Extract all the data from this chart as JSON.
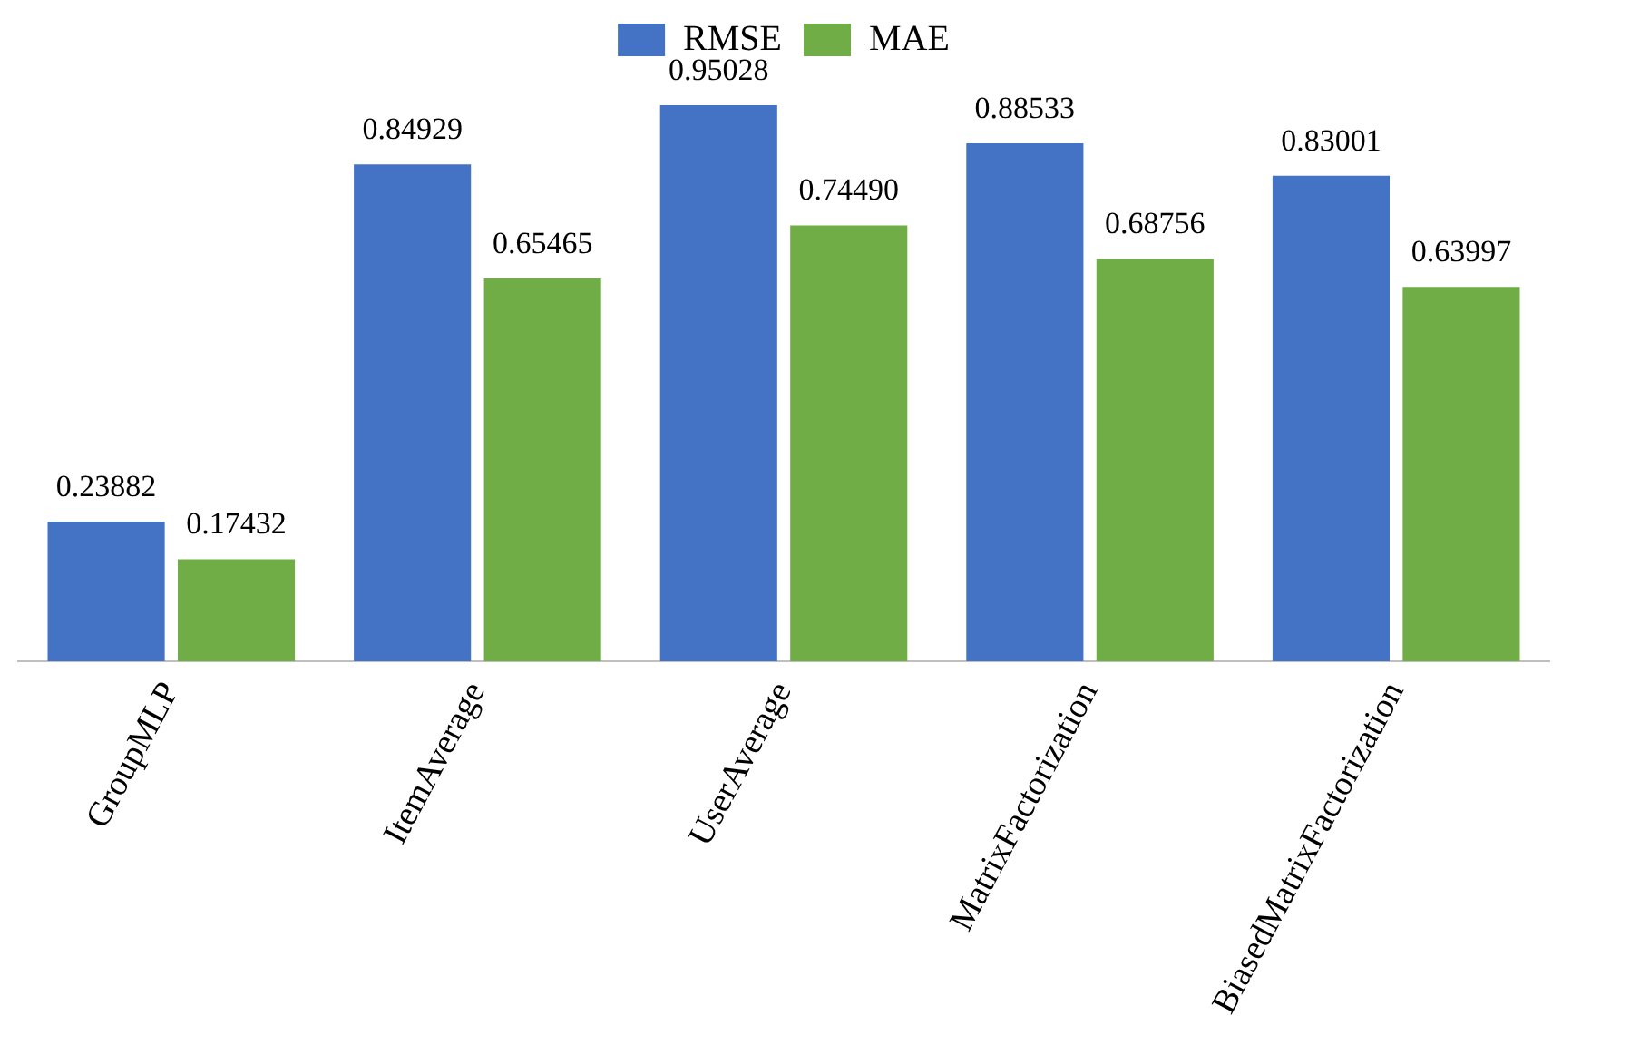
{
  "chart_data": {
    "type": "bar",
    "categories": [
      "GroupMLP",
      "ItemAverage",
      "UserAverage",
      "MatrixFactorization",
      "BiasedMatrixFactorization"
    ],
    "series": [
      {
        "name": "RMSE",
        "color": "#4472c4",
        "values": [
          0.23882,
          0.84929,
          0.95028,
          0.88533,
          0.83001
        ],
        "value_labels": [
          "0.23882",
          "0.84929",
          "0.95028",
          "0.88533",
          "0.83001"
        ]
      },
      {
        "name": "MAE",
        "color": "#70ad47",
        "values": [
          0.17432,
          0.65465,
          0.7449,
          0.68756,
          0.63997
        ],
        "value_labels": [
          "0.17432",
          "0.65465",
          "0.74490",
          "0.68756",
          "0.63997"
        ]
      }
    ],
    "data_labels": true,
    "legend": "top",
    "grid": false
  }
}
